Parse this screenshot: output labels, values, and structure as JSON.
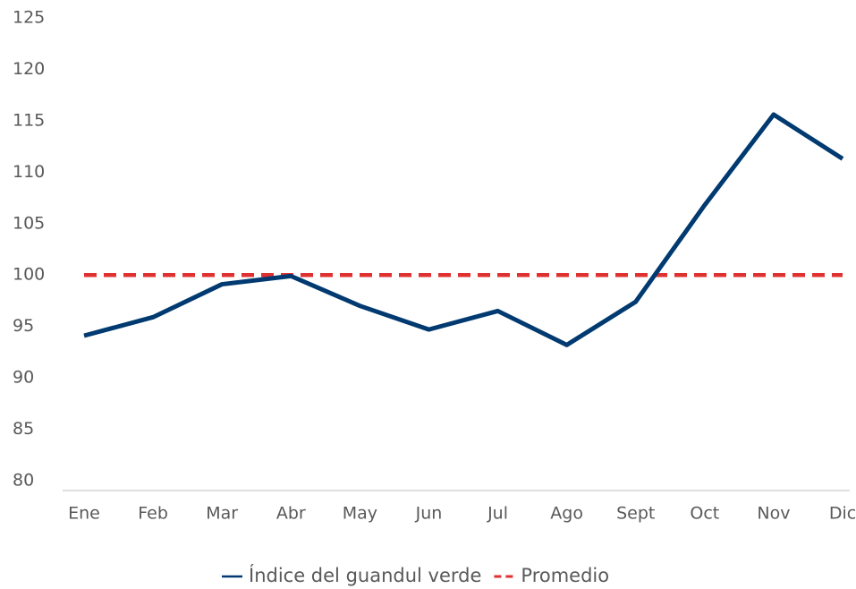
{
  "chart_data": {
    "type": "line",
    "categories": [
      "Ene",
      "Feb",
      "Mar",
      "Abr",
      "May",
      "Jun",
      "Jul",
      "Ago",
      "Sept",
      "Oct",
      "Nov",
      "Dic"
    ],
    "series": [
      {
        "name": "Índice del guandul verde",
        "color": "#003a70",
        "style": "solid",
        "values": [
          94.1,
          95.9,
          99.1,
          99.9,
          97.0,
          94.7,
          96.5,
          93.2,
          97.4,
          106.8,
          115.6,
          111.3
        ]
      },
      {
        "name": "Promedio",
        "color": "#e03131",
        "style": "dashed",
        "values": [
          100,
          100,
          100,
          100,
          100,
          100,
          100,
          100,
          100,
          100,
          100,
          100
        ]
      }
    ],
    "ylim": [
      80,
      125
    ],
    "yticks": [
      80,
      85,
      90,
      95,
      100,
      105,
      110,
      115,
      120,
      125
    ],
    "grid": false,
    "legend": "bottom"
  }
}
